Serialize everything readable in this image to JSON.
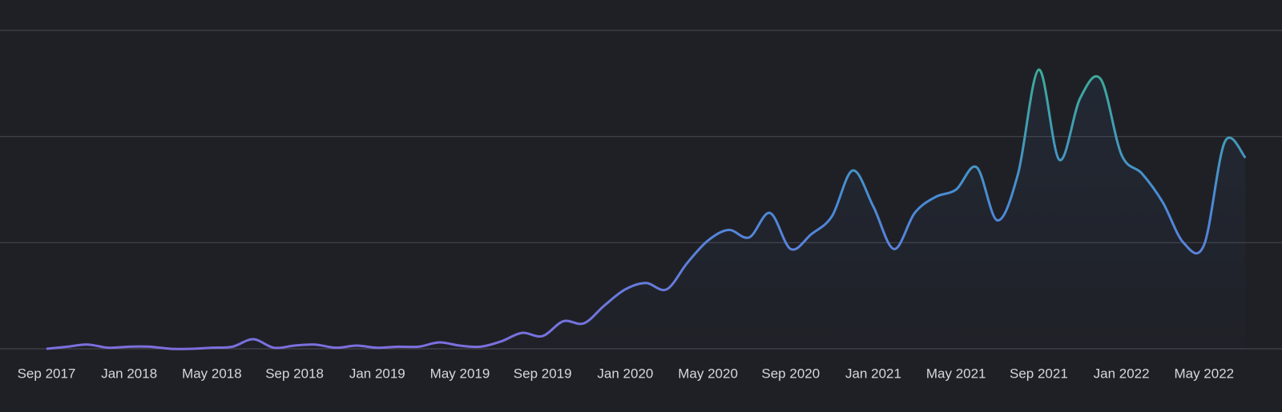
{
  "chart_data": {
    "type": "line",
    "categories": [
      "Sep 2017",
      null,
      null,
      null,
      "Jan 2018",
      null,
      null,
      null,
      "May 2018",
      null,
      null,
      null,
      "Sep 2018",
      null,
      null,
      null,
      "Jan 2019",
      null,
      null,
      null,
      "May 2019",
      null,
      null,
      null,
      "Sep 2019",
      null,
      null,
      null,
      "Jan 2020",
      null,
      null,
      null,
      "May 2020",
      null,
      null,
      null,
      "Sep 2020",
      null,
      null,
      null,
      "Jan 2021",
      null,
      null,
      null,
      "May 2021",
      null,
      null,
      null,
      "Sep 2021",
      null,
      null,
      null,
      "Jan 2022",
      null,
      null,
      null,
      "May 2022",
      null,
      null
    ],
    "values": [
      0,
      0.02,
      0.04,
      0.01,
      0.02,
      0.02,
      0,
      0,
      0.01,
      0.02,
      0.09,
      0.01,
      0.03,
      0.04,
      0.01,
      0.03,
      0.01,
      0.02,
      0.02,
      0.06,
      0.03,
      0.02,
      0.07,
      0.15,
      0.12,
      0.26,
      0.24,
      0.41,
      0.56,
      0.62,
      0.56,
      0.81,
      1.02,
      1.12,
      1.05,
      1.28,
      0.94,
      1.08,
      1.25,
      1.68,
      1.34,
      0.94,
      1.28,
      1.43,
      1.5,
      1.71,
      1.21,
      1.65,
      2.63,
      1.78,
      2.36,
      2.54,
      1.83,
      1.65,
      1.38,
      1.0,
      0.98,
      1.95,
      1.8
    ],
    "colors": [
      "#7c6fde",
      "#4a8ad8",
      "#3aae94"
    ],
    "ylim": [
      0,
      3
    ],
    "yticks": [
      0,
      1,
      2,
      3
    ],
    "grid": true
  }
}
